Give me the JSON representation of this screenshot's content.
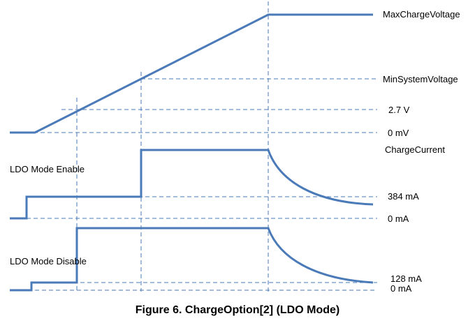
{
  "diagram": {
    "caption": "Figure 6.  ChargeOption[2] (LDO Mode)",
    "voltage_labels": {
      "max_charge_voltage": "MaxChargeVoltage",
      "min_system_voltage": "MinSystemVoltage",
      "v_2_7": "2.7 V",
      "v_0": "0 mV"
    },
    "ldo_enable": {
      "title": "LDO Mode Enable",
      "charge_current": "ChargeCurrent",
      "current_384": "384 mA",
      "current_0": "0 mA"
    },
    "ldo_disable": {
      "title": "LDO Mode Disable",
      "current_128": "128 mA",
      "current_0": "0 mA"
    }
  },
  "colors": {
    "waveform": "#4a7ab8",
    "text": "#000000"
  }
}
